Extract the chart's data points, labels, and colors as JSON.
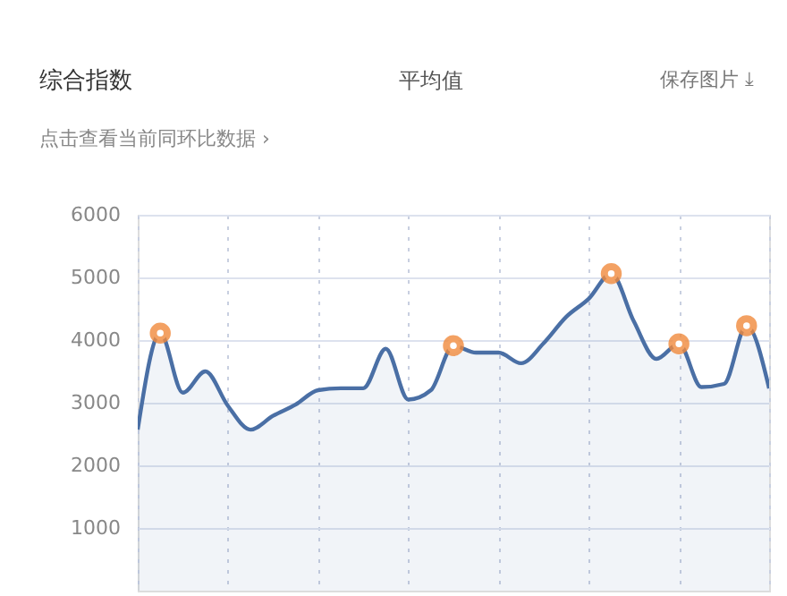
{
  "chart_data": {
    "type": "area",
    "title": "综合指数",
    "subtitle": "点击查看当前同环比数据 ›",
    "annotations": [
      "平均值",
      "保存图片 ⤓"
    ],
    "categories": [
      null,
      null,
      null,
      null,
      null,
      null,
      null,
      null,
      null,
      null,
      null,
      null,
      null,
      null,
      null,
      null,
      null,
      null,
      null,
      null,
      null,
      null,
      null,
      null,
      null,
      null,
      null,
      null,
      null
    ],
    "series": [
      {
        "color": "#4a6fa5",
        "values": [
          2570,
          4110,
          3160,
          3500,
          2950,
          2570,
          2790,
          2970,
          3200,
          3230,
          3230,
          3860,
          3050,
          3200,
          3910,
          3800,
          3800,
          3630,
          3950,
          4370,
          4660,
          5060,
          4300,
          3700,
          3940,
          3250,
          3300,
          4230,
          3230
        ]
      },
      {
        "type": "scatter",
        "color": "#f08a3c",
        "marker": "circle",
        "values": [
          null,
          4110,
          null,
          null,
          null,
          null,
          null,
          null,
          null,
          null,
          null,
          null,
          null,
          null,
          3910,
          null,
          null,
          null,
          null,
          null,
          null,
          5060,
          null,
          null,
          3940,
          null,
          null,
          4230,
          null
        ]
      }
    ],
    "ylim": [
      0,
      6000
    ],
    "yticks": [
      1000,
      2000,
      3000,
      4000,
      5000,
      6000
    ],
    "grid": true,
    "tick_labels": "y"
  }
}
